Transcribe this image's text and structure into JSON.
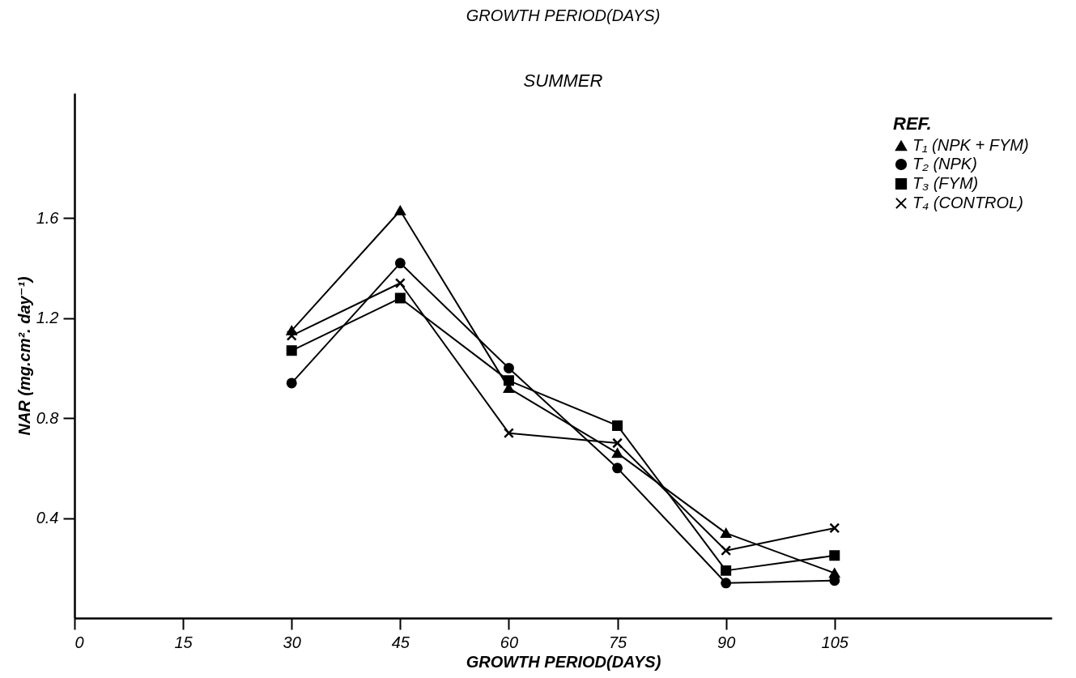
{
  "chart_data": {
    "type": "line",
    "title": "GROWTH PERIOD(DAYS)",
    "subtitle": "SUMMER",
    "xlabel": "GROWTH PERIOD(DAYS)",
    "ylabel": "NAR (mg.cm². day⁻¹)",
    "legend_title": "REF.",
    "legend": "top right",
    "grid": false,
    "line_style": "solid",
    "x": [
      30,
      45,
      60,
      75,
      90,
      105
    ],
    "xlim": [
      0,
      135
    ],
    "xticks": [
      0,
      15,
      30,
      45,
      60,
      75,
      90,
      105
    ],
    "ylim": [
      0,
      2.1
    ],
    "yticks": [
      0.4,
      0.8,
      1.2,
      1.6
    ],
    "series": [
      {
        "name": "T₁ (NPK + FYM)",
        "color": "#000000",
        "marker": "triangle",
        "values": [
          1.15,
          1.63,
          0.92,
          0.66,
          0.34,
          0.18
        ]
      },
      {
        "name": "T₂ (NPK)",
        "color": "#000000",
        "marker": "circle",
        "values": [
          0.94,
          1.42,
          1.0,
          0.6,
          0.14,
          0.15
        ]
      },
      {
        "name": "T₃ (FYM)",
        "color": "#000000",
        "marker": "square",
        "values": [
          1.07,
          1.28,
          0.95,
          0.77,
          0.19,
          0.25
        ]
      },
      {
        "name": "T₄ (CONTROL)",
        "color": "#000000",
        "marker": "cross",
        "values": [
          1.13,
          1.34,
          0.74,
          0.7,
          0.27,
          0.36
        ]
      }
    ]
  }
}
